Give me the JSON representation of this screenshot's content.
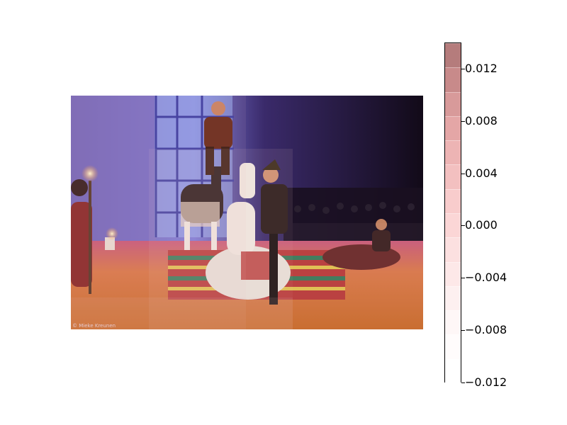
{
  "photo": {
    "description_icon": "photo-scene",
    "credit": "© Mieke Kreunen"
  },
  "colorbar": {
    "min": -0.012,
    "max": 0.014,
    "bands": [
      "#ffffff",
      "#fffcfc",
      "#fef7f7",
      "#fdf0f0",
      "#fde8e8",
      "#fce0e0",
      "#fbd6d6",
      "#f8cccc",
      "#f3c0c0",
      "#edb4b4",
      "#e4a6a6",
      "#d89a9a",
      "#c88a8a",
      "#b57c7c"
    ],
    "ticks": [
      {
        "value": 0.012,
        "label": "0.012"
      },
      {
        "value": 0.008,
        "label": "0.008"
      },
      {
        "value": 0.004,
        "label": "0.004"
      },
      {
        "value": 0.0,
        "label": "0.000"
      },
      {
        "value": -0.004,
        "label": "−0.004"
      },
      {
        "value": -0.008,
        "label": "−0.008"
      },
      {
        "value": -0.012,
        "label": "−0.012"
      }
    ]
  }
}
